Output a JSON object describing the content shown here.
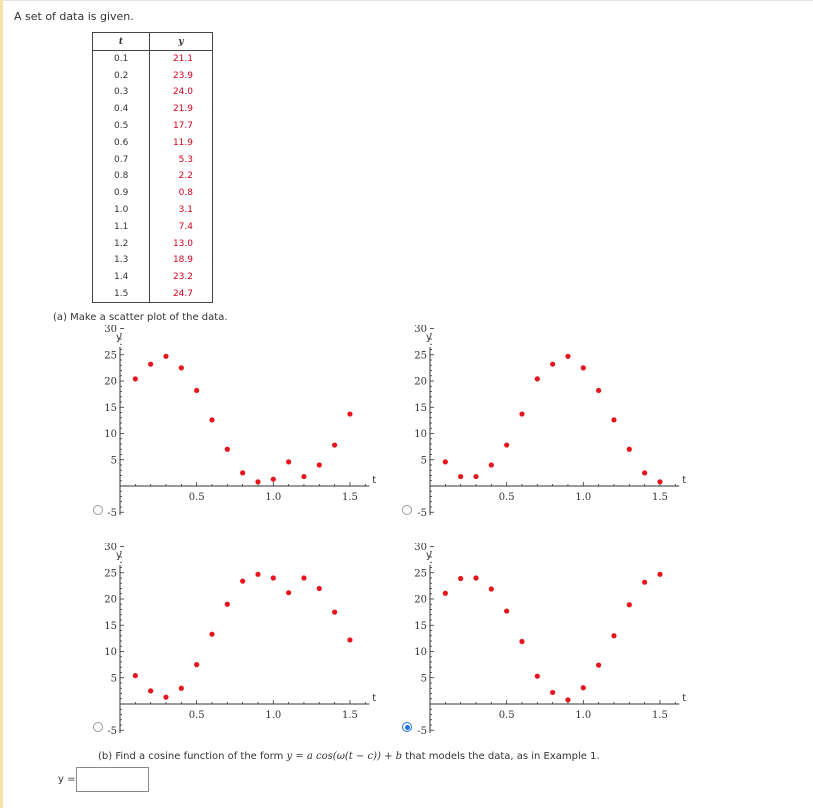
{
  "intro": "A set of data is given.",
  "table": {
    "col_t": "t",
    "col_y": "y",
    "rows": [
      {
        "t": "0.1",
        "y": "21.1"
      },
      {
        "t": "0.2",
        "y": "23.9"
      },
      {
        "t": "0.3",
        "y": "24.0"
      },
      {
        "t": "0.4",
        "y": "21.9"
      },
      {
        "t": "0.5",
        "y": "17.7"
      },
      {
        "t": "0.6",
        "y": "11.9"
      },
      {
        "t": "0.7",
        "y": "5.3"
      },
      {
        "t": "0.8",
        "y": "2.2"
      },
      {
        "t": "0.9",
        "y": "0.8"
      },
      {
        "t": "1.0",
        "y": "3.1"
      },
      {
        "t": "1.1",
        "y": "7.4"
      },
      {
        "t": "1.2",
        "y": "13.0"
      },
      {
        "t": "1.3",
        "y": "18.9"
      },
      {
        "t": "1.4",
        "y": "23.2"
      },
      {
        "t": "1.5",
        "y": "24.7"
      }
    ]
  },
  "part_a": "(a) Make a scatter plot of the data.",
  "part_b": {
    "prefix": "(b) Find a cosine function of the form ",
    "formula": "y = a cos(ω(t − c)) + b",
    "suffix": " that models the data, as in Example 1.",
    "y_label": "y =",
    "answer_value": ""
  },
  "chart_data": [
    {
      "type": "scatter",
      "option": "A",
      "selected": false,
      "xlabel": "t",
      "ylabel": "y",
      "xlim": [
        0,
        1.6
      ],
      "ylim": [
        -5,
        30
      ],
      "xticks": [
        "0.5",
        "1.0",
        "1.5"
      ],
      "yticks": [
        "-5",
        "5",
        "10",
        "15",
        "20",
        "25",
        "30"
      ],
      "x": [
        0.1,
        0.2,
        0.3,
        0.4,
        0.5,
        0.6,
        0.7,
        0.8,
        0.9,
        1.0,
        1.1,
        1.2,
        1.3,
        1.4,
        1.5
      ],
      "y": [
        20.4,
        23.2,
        24.7,
        22.5,
        18.2,
        12.6,
        7.0,
        2.5,
        0.8,
        1.3,
        4.6,
        1.8,
        4.0,
        7.8,
        13.7
      ]
    },
    {
      "type": "scatter",
      "option": "B",
      "selected": false,
      "xlabel": "t",
      "ylabel": "y",
      "xlim": [
        0,
        1.6
      ],
      "ylim": [
        -5,
        30
      ],
      "xticks": [
        "0.5",
        "1.0",
        "1.5"
      ],
      "yticks": [
        "-5",
        "5",
        "10",
        "15",
        "20",
        "25",
        "30"
      ],
      "x": [
        0.1,
        0.2,
        0.3,
        0.4,
        0.5,
        0.6,
        0.7,
        0.8,
        0.9,
        1.0,
        1.1,
        1.2,
        1.3,
        1.4,
        1.5
      ],
      "y": [
        4.6,
        1.8,
        1.8,
        4.0,
        7.8,
        13.7,
        20.4,
        23.2,
        24.7,
        22.5,
        18.2,
        12.6,
        7.0,
        2.5,
        0.8
      ]
    },
    {
      "type": "scatter",
      "option": "C",
      "selected": false,
      "xlabel": "t",
      "ylabel": "y",
      "xlim": [
        0,
        1.6
      ],
      "ylim": [
        -5,
        30
      ],
      "xticks": [
        "0.5",
        "1.0",
        "1.5"
      ],
      "yticks": [
        "-5",
        "5",
        "10",
        "15",
        "20",
        "25",
        "30"
      ],
      "x": [
        0.1,
        0.2,
        0.3,
        0.4,
        0.5,
        0.6,
        0.7,
        0.8,
        0.9,
        1.0,
        1.1,
        1.2,
        1.3,
        1.4,
        1.5
      ],
      "y": [
        5.4,
        2.5,
        1.3,
        3.0,
        7.5,
        13.3,
        19.0,
        23.4,
        24.7,
        24.0,
        21.2,
        24.0,
        22.0,
        17.5,
        12.2
      ]
    },
    {
      "type": "scatter",
      "option": "D",
      "selected": true,
      "xlabel": "t",
      "ylabel": "y",
      "xlim": [
        0,
        1.6
      ],
      "ylim": [
        -5,
        30
      ],
      "xticks": [
        "0.5",
        "1.0",
        "1.5"
      ],
      "yticks": [
        "-5",
        "5",
        "10",
        "15",
        "20",
        "25",
        "30"
      ],
      "x": [
        0.1,
        0.2,
        0.3,
        0.4,
        0.5,
        0.6,
        0.7,
        0.8,
        0.9,
        1.0,
        1.1,
        1.2,
        1.3,
        1.4,
        1.5
      ],
      "y": [
        21.1,
        23.9,
        24.0,
        21.9,
        17.7,
        11.9,
        5.3,
        2.2,
        0.8,
        3.1,
        7.4,
        13.0,
        18.9,
        23.2,
        24.7
      ]
    }
  ],
  "colors": {
    "point": "#e8141c",
    "axis": "#333333",
    "radio_selected": "#1a73e8"
  }
}
